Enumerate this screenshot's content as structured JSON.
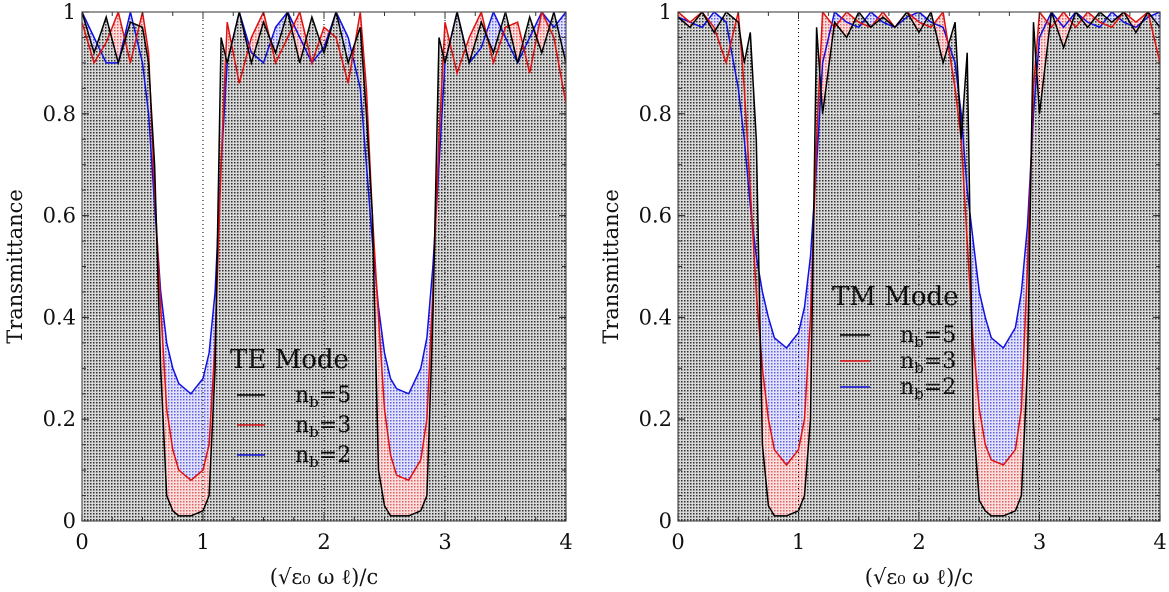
{
  "chart_data": [
    {
      "type": "area",
      "xlabel": "(√ε₀ ω ℓ)/c",
      "ylabel": "Transmittance",
      "xlim": [
        0,
        4
      ],
      "ylim": [
        0,
        1
      ],
      "xticks": [
        "0",
        "1",
        "2",
        "3",
        "4"
      ],
      "yticks": [
        "0",
        "0.2",
        "0.4",
        "0.6",
        "0.8",
        "1"
      ],
      "grid": true,
      "legend_title": "TE Mode",
      "legend_placement": "center",
      "x": [
        0,
        0.1,
        0.2,
        0.3,
        0.4,
        0.5,
        0.55,
        0.6,
        0.65,
        0.7,
        0.75,
        0.8,
        0.9,
        1.0,
        1.05,
        1.1,
        1.15,
        1.2,
        1.3,
        1.4,
        1.5,
        1.6,
        1.7,
        1.8,
        1.9,
        2.0,
        2.1,
        2.2,
        2.3,
        2.35,
        2.4,
        2.45,
        2.5,
        2.55,
        2.6,
        2.7,
        2.8,
        2.85,
        2.9,
        2.95,
        3.0,
        3.1,
        3.2,
        3.3,
        3.4,
        3.5,
        3.6,
        3.7,
        3.8,
        3.9,
        4.0
      ],
      "series": [
        {
          "name": "n_b=5",
          "color": "#000000",
          "fill": "#808080",
          "values": [
            1,
            0.92,
            0.99,
            0.9,
            0.98,
            0.97,
            0.9,
            0.7,
            0.3,
            0.05,
            0.02,
            0.01,
            0.01,
            0.02,
            0.05,
            0.3,
            0.95,
            0.9,
            1.0,
            0.9,
            0.98,
            0.92,
            1.0,
            0.9,
            0.99,
            0.92,
            1.0,
            0.9,
            0.97,
            0.8,
            0.6,
            0.1,
            0.03,
            0.01,
            0.01,
            0.01,
            0.02,
            0.05,
            0.4,
            0.95,
            0.9,
            1.0,
            0.9,
            0.98,
            0.92,
            1.0,
            0.9,
            0.99,
            0.92,
            1.0,
            0.9
          ]
        },
        {
          "name": "n_b=3",
          "color": "#e01010",
          "fill": "#f08080",
          "values": [
            0.98,
            0.9,
            0.94,
            1.0,
            0.9,
            1.0,
            0.92,
            0.65,
            0.42,
            0.22,
            0.14,
            0.1,
            0.08,
            0.1,
            0.15,
            0.35,
            0.7,
            0.98,
            0.86,
            0.95,
            1.0,
            0.9,
            0.95,
            1.0,
            0.9,
            0.97,
            0.95,
            0.86,
            1.0,
            0.85,
            0.6,
            0.4,
            0.22,
            0.13,
            0.09,
            0.08,
            0.12,
            0.2,
            0.45,
            0.75,
            0.98,
            0.88,
            0.95,
            1.0,
            0.9,
            0.97,
            0.98,
            0.88,
            1.0,
            0.95,
            0.82
          ]
        },
        {
          "name": "n_b=2",
          "color": "#1010e0",
          "fill": "#8080f0",
          "values": [
            1,
            0.95,
            0.9,
            0.9,
            1.0,
            0.9,
            0.8,
            0.62,
            0.45,
            0.35,
            0.3,
            0.27,
            0.25,
            0.28,
            0.33,
            0.45,
            0.7,
            0.9,
            1.0,
            0.92,
            0.9,
            0.97,
            1.0,
            0.95,
            0.9,
            0.93,
            1.0,
            0.95,
            0.85,
            0.7,
            0.55,
            0.42,
            0.33,
            0.28,
            0.26,
            0.25,
            0.3,
            0.36,
            0.5,
            0.7,
            0.9,
            1.0,
            0.9,
            0.93,
            1.0,
            0.95,
            0.9,
            0.95,
            1.0,
            0.97,
            1.0
          ]
        }
      ]
    },
    {
      "type": "area",
      "xlabel": "(√ε₀ ω ℓ)/c",
      "ylabel": "Transmittance",
      "xlim": [
        0,
        4
      ],
      "ylim": [
        0,
        1
      ],
      "xticks": [
        "0",
        "1",
        "2",
        "3",
        "4"
      ],
      "yticks": [
        "0",
        "0.2",
        "0.4",
        "0.6",
        "0.8",
        "1"
      ],
      "grid": true,
      "legend_title": "TM Mode",
      "legend_placement": "center",
      "x": [
        0,
        0.1,
        0.2,
        0.3,
        0.4,
        0.5,
        0.55,
        0.6,
        0.65,
        0.7,
        0.75,
        0.8,
        0.9,
        1.0,
        1.05,
        1.1,
        1.15,
        1.2,
        1.3,
        1.4,
        1.5,
        1.6,
        1.7,
        1.8,
        1.9,
        2.0,
        2.1,
        2.2,
        2.3,
        2.35,
        2.4,
        2.45,
        2.5,
        2.55,
        2.6,
        2.7,
        2.8,
        2.85,
        2.9,
        2.95,
        3.0,
        3.1,
        3.2,
        3.3,
        3.4,
        3.5,
        3.6,
        3.7,
        3.8,
        3.9,
        4.0
      ],
      "series": [
        {
          "name": "n_b=5",
          "color": "#000000",
          "fill": "#808080",
          "values": [
            0.99,
            0.97,
            1.0,
            0.96,
            1.0,
            0.98,
            0.9,
            0.96,
            0.75,
            0.15,
            0.03,
            0.01,
            0.01,
            0.02,
            0.05,
            0.2,
            0.97,
            0.8,
            0.98,
            0.95,
            1.0,
            0.97,
            0.99,
            0.97,
            1.0,
            0.96,
            1.0,
            0.9,
            0.98,
            0.75,
            0.92,
            0.2,
            0.04,
            0.02,
            0.01,
            0.01,
            0.02,
            0.05,
            0.3,
            0.98,
            0.8,
            1.0,
            0.93,
            1.0,
            0.97,
            1.0,
            0.98,
            1.0,
            0.96,
            1.0,
            0.97
          ]
        },
        {
          "name": "n_b=3",
          "color": "#e01010",
          "fill": "#f08080",
          "values": [
            1.0,
            0.98,
            1.0,
            0.97,
            0.9,
            1.0,
            0.85,
            0.65,
            0.45,
            0.3,
            0.2,
            0.14,
            0.11,
            0.14,
            0.2,
            0.4,
            0.75,
            1.0,
            0.97,
            1.0,
            0.98,
            0.97,
            1.0,
            0.97,
            1.0,
            0.98,
            0.97,
            1.0,
            0.85,
            0.75,
            0.55,
            0.35,
            0.22,
            0.15,
            0.12,
            0.11,
            0.14,
            0.22,
            0.5,
            0.85,
            1.0,
            0.97,
            1.0,
            0.97,
            1.0,
            0.98,
            0.97,
            1.0,
            0.98,
            1.0,
            0.9
          ]
        },
        {
          "name": "n_b=2",
          "color": "#1010e0",
          "fill": "#8080f0",
          "values": [
            0.99,
            0.98,
            0.97,
            1.0,
            0.98,
            0.85,
            0.75,
            0.62,
            0.52,
            0.45,
            0.4,
            0.36,
            0.34,
            0.37,
            0.42,
            0.52,
            0.7,
            0.9,
            1.0,
            0.98,
            0.97,
            1.0,
            0.98,
            0.97,
            0.99,
            1.0,
            0.98,
            0.97,
            0.9,
            0.8,
            0.65,
            0.55,
            0.45,
            0.4,
            0.36,
            0.34,
            0.38,
            0.45,
            0.58,
            0.8,
            0.95,
            1.0,
            0.97,
            1.0,
            0.98,
            0.97,
            1.0,
            0.98,
            0.97,
            0.99,
            1.0
          ]
        }
      ]
    }
  ]
}
